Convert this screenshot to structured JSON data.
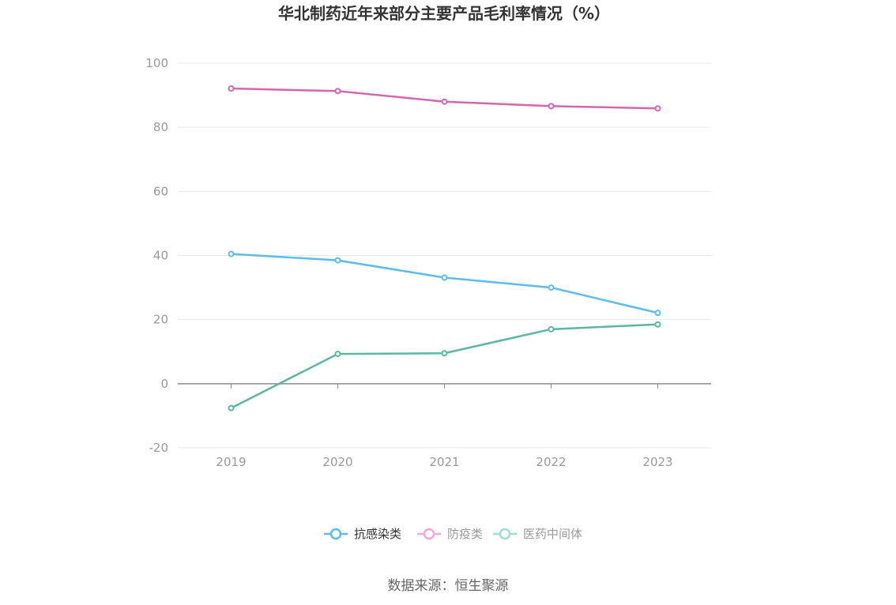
{
  "chart_data": {
    "type": "line",
    "title": "华北制药近年来部分主要产品毛利率情况（%）",
    "categories": [
      "2019",
      "2020",
      "2021",
      "2022",
      "2023"
    ],
    "ylim": [
      -20,
      100
    ],
    "yticks": [
      "100",
      "80",
      "60",
      "40",
      "20",
      "0",
      "-20"
    ],
    "grid": true,
    "legend_position": "bottom",
    "series": [
      {
        "name": "抗感染类",
        "color": "#5bbcf0",
        "values": [
          40.5,
          38.5,
          33.1,
          30.0,
          22.1
        ]
      },
      {
        "name": "防疫类",
        "color": "#d466ad",
        "values": [
          92.1,
          91.3,
          88.0,
          86.6,
          85.9
        ]
      },
      {
        "name": "医药中间体",
        "color": "#5ab8a0",
        "values": [
          -7.6,
          9.3,
          9.5,
          17.0,
          18.5
        ]
      }
    ],
    "legend": [
      {
        "label": "抗感染类",
        "color": "#5bbcf0",
        "text_color": "#333333"
      },
      {
        "label": "防疫类",
        "color": "#f2a8d2",
        "text_color": "#999999"
      },
      {
        "label": "医药中间体",
        "color": "#a3dccb",
        "text_color": "#999999"
      }
    ]
  },
  "source": "数据来源：恒生聚源"
}
